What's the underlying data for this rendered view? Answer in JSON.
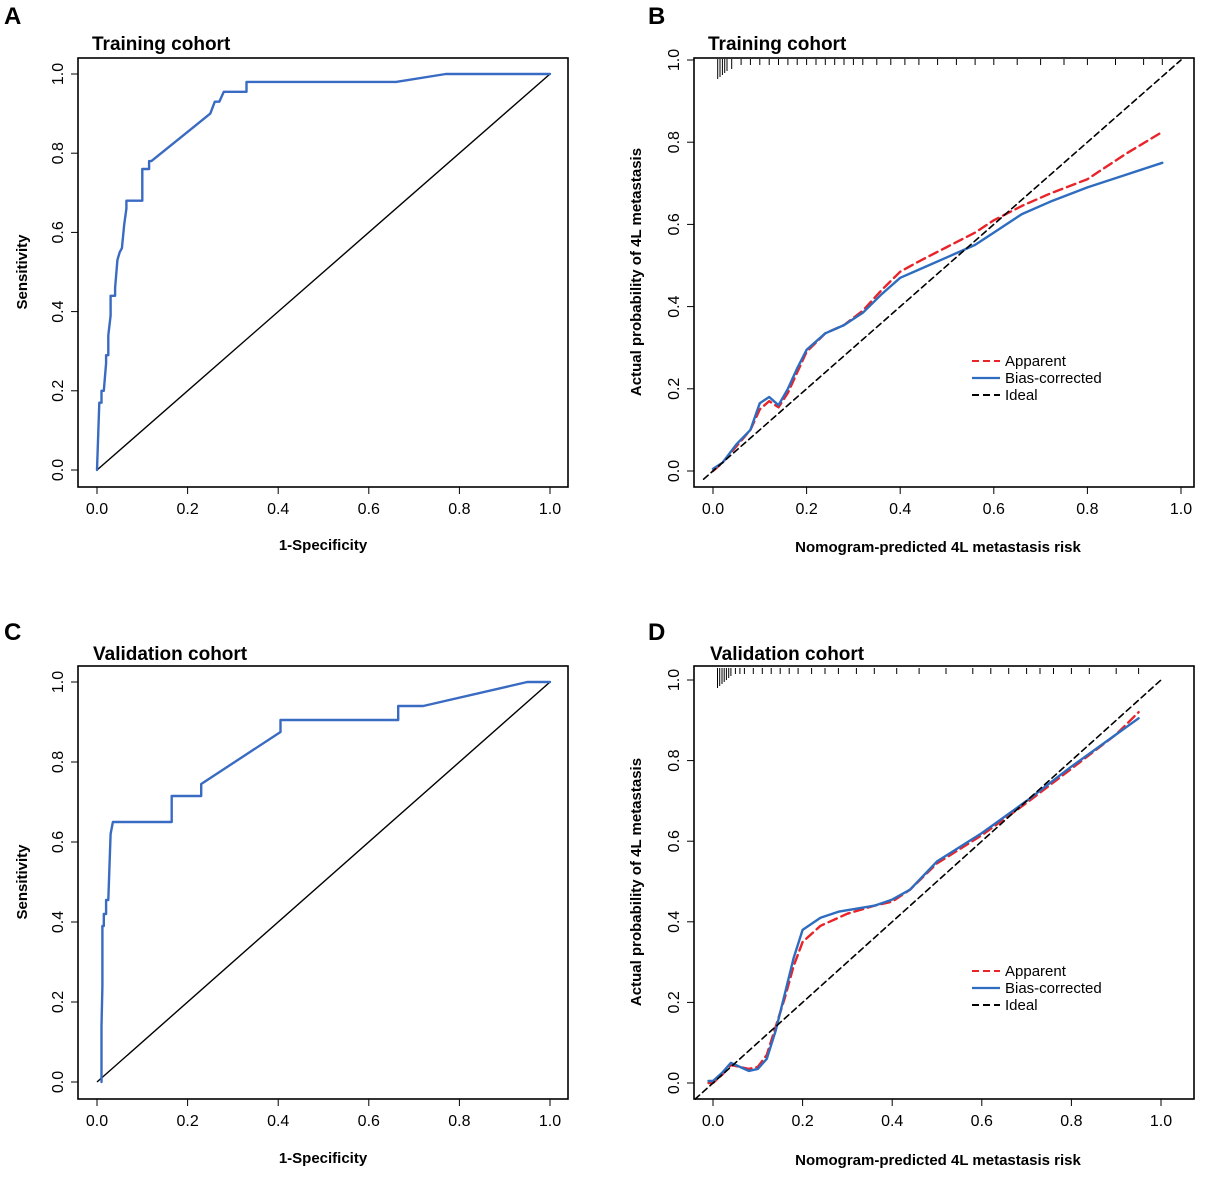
{
  "figure": {
    "panels": [
      {
        "id": "A",
        "label": "A"
      },
      {
        "id": "B",
        "label": "B"
      },
      {
        "id": "C",
        "label": "C"
      },
      {
        "id": "D",
        "label": "D"
      }
    ]
  },
  "colors": {
    "roc_curve": "#3a6bc2",
    "apparent": "#e8242a",
    "bias_corrected": "#2e6cc0",
    "ideal": "#000000",
    "reference_line": "#000000"
  },
  "chart_data": [
    {
      "panel": "A",
      "type": "line",
      "title": "Training cohort",
      "xlabel": "1-Specificity",
      "ylabel": "Sensitivity",
      "xlim": [
        0,
        1
      ],
      "ylim": [
        0,
        1
      ],
      "xticks": [
        "0.0",
        "0.2",
        "0.4",
        "0.6",
        "0.8",
        "1.0"
      ],
      "yticks": [
        "0.0",
        "0.2",
        "0.4",
        "0.6",
        "0.8",
        "1.0"
      ],
      "grid": false,
      "reference_line": [
        [
          0,
          0
        ],
        [
          1,
          1
        ]
      ],
      "series": [
        {
          "name": "ROC",
          "color": "#3a6bc2",
          "points": [
            [
              0.0,
              0.0
            ],
            [
              0.005,
              0.17
            ],
            [
              0.01,
              0.17
            ],
            [
              0.01,
              0.2
            ],
            [
              0.015,
              0.2
            ],
            [
              0.02,
              0.27
            ],
            [
              0.02,
              0.29
            ],
            [
              0.025,
              0.29
            ],
            [
              0.025,
              0.34
            ],
            [
              0.03,
              0.39
            ],
            [
              0.03,
              0.44
            ],
            [
              0.04,
              0.44
            ],
            [
              0.04,
              0.46
            ],
            [
              0.045,
              0.53
            ],
            [
              0.05,
              0.55
            ],
            [
              0.055,
              0.56
            ],
            [
              0.06,
              0.62
            ],
            [
              0.065,
              0.66
            ],
            [
              0.065,
              0.68
            ],
            [
              0.07,
              0.68
            ],
            [
              0.1,
              0.68
            ],
            [
              0.1,
              0.76
            ],
            [
              0.115,
              0.76
            ],
            [
              0.115,
              0.78
            ],
            [
              0.12,
              0.78
            ],
            [
              0.25,
              0.9
            ],
            [
              0.26,
              0.93
            ],
            [
              0.27,
              0.93
            ],
            [
              0.28,
              0.955
            ],
            [
              0.33,
              0.955
            ],
            [
              0.33,
              0.98
            ],
            [
              0.66,
              0.98
            ],
            [
              0.77,
              1.0
            ],
            [
              1.0,
              1.0
            ]
          ]
        }
      ]
    },
    {
      "panel": "B",
      "type": "line",
      "title": "Training cohort",
      "xlabel": "Nomogram-predicted 4L metastasis risk",
      "ylabel": "Actual probability of 4L metastasis",
      "xlim": [
        0,
        1
      ],
      "ylim": [
        0,
        1
      ],
      "xticks": [
        "0.0",
        "0.2",
        "0.4",
        "0.6",
        "0.8",
        "1.0"
      ],
      "yticks": [
        "0.0",
        "0.2",
        "0.4",
        "0.6",
        "0.8",
        "1.0"
      ],
      "grid": false,
      "legend_position": "bottom-right",
      "rug_x": [
        0.01,
        0.015,
        0.02,
        0.025,
        0.03,
        0.04,
        0.06,
        0.08,
        0.1,
        0.12,
        0.14,
        0.16,
        0.18,
        0.2,
        0.22,
        0.24,
        0.26,
        0.28,
        0.3,
        0.32,
        0.35,
        0.38,
        0.41,
        0.44,
        0.48,
        0.52,
        0.56,
        0.6,
        0.65,
        0.7,
        0.75,
        0.8,
        0.86,
        0.92,
        0.96
      ],
      "series": [
        {
          "name": "Apparent",
          "style": "dashed",
          "color": "#e8242a",
          "points": [
            [
              0.0,
              0.0
            ],
            [
              0.02,
              0.02
            ],
            [
              0.05,
              0.06
            ],
            [
              0.08,
              0.1
            ],
            [
              0.1,
              0.15
            ],
            [
              0.12,
              0.17
            ],
            [
              0.14,
              0.155
            ],
            [
              0.16,
              0.19
            ],
            [
              0.18,
              0.24
            ],
            [
              0.2,
              0.29
            ],
            [
              0.24,
              0.335
            ],
            [
              0.28,
              0.355
            ],
            [
              0.32,
              0.39
            ],
            [
              0.36,
              0.44
            ],
            [
              0.4,
              0.485
            ],
            [
              0.44,
              0.51
            ],
            [
              0.5,
              0.545
            ],
            [
              0.56,
              0.58
            ],
            [
              0.6,
              0.61
            ],
            [
              0.66,
              0.645
            ],
            [
              0.72,
              0.675
            ],
            [
              0.8,
              0.71
            ],
            [
              0.88,
              0.77
            ],
            [
              0.96,
              0.825
            ]
          ]
        },
        {
          "name": "Bias-corrected",
          "style": "solid",
          "color": "#2e6cc0",
          "points": [
            [
              0.0,
              0.005
            ],
            [
              0.02,
              0.02
            ],
            [
              0.05,
              0.065
            ],
            [
              0.08,
              0.1
            ],
            [
              0.1,
              0.165
            ],
            [
              0.12,
              0.18
            ],
            [
              0.14,
              0.16
            ],
            [
              0.16,
              0.2
            ],
            [
              0.18,
              0.25
            ],
            [
              0.2,
              0.295
            ],
            [
              0.24,
              0.335
            ],
            [
              0.28,
              0.355
            ],
            [
              0.32,
              0.385
            ],
            [
              0.36,
              0.43
            ],
            [
              0.4,
              0.47
            ],
            [
              0.44,
              0.49
            ],
            [
              0.5,
              0.52
            ],
            [
              0.56,
              0.55
            ],
            [
              0.6,
              0.58
            ],
            [
              0.66,
              0.625
            ],
            [
              0.72,
              0.655
            ],
            [
              0.8,
              0.69
            ],
            [
              0.88,
              0.72
            ],
            [
              0.96,
              0.75
            ]
          ]
        },
        {
          "name": "Ideal",
          "style": "dashed",
          "color": "#000000",
          "points": [
            [
              -0.02,
              -0.02
            ],
            [
              1.0,
              1.0
            ]
          ]
        }
      ]
    },
    {
      "panel": "C",
      "type": "line",
      "title": "Validation cohort",
      "xlabel": "1-Specificity",
      "ylabel": "Sensitivity",
      "xlim": [
        0,
        1
      ],
      "ylim": [
        0,
        1
      ],
      "xticks": [
        "0.0",
        "0.2",
        "0.4",
        "0.6",
        "0.8",
        "1.0"
      ],
      "yticks": [
        "0.0",
        "0.2",
        "0.4",
        "0.6",
        "0.8",
        "1.0"
      ],
      "grid": false,
      "reference_line": [
        [
          0,
          0
        ],
        [
          1,
          1
        ]
      ],
      "series": [
        {
          "name": "ROC",
          "color": "#3a6bc2",
          "points": [
            [
              0.01,
              0.0
            ],
            [
              0.01,
              0.14
            ],
            [
              0.012,
              0.24
            ],
            [
              0.012,
              0.39
            ],
            [
              0.015,
              0.39
            ],
            [
              0.015,
              0.42
            ],
            [
              0.02,
              0.42
            ],
            [
              0.02,
              0.455
            ],
            [
              0.025,
              0.455
            ],
            [
              0.03,
              0.62
            ],
            [
              0.035,
              0.65
            ],
            [
              0.165,
              0.65
            ],
            [
              0.165,
              0.715
            ],
            [
              0.23,
              0.715
            ],
            [
              0.23,
              0.745
            ],
            [
              0.405,
              0.875
            ],
            [
              0.405,
              0.905
            ],
            [
              0.665,
              0.905
            ],
            [
              0.665,
              0.94
            ],
            [
              0.72,
              0.94
            ],
            [
              0.95,
              1.0
            ],
            [
              1.0,
              1.0
            ]
          ]
        }
      ]
    },
    {
      "panel": "D",
      "type": "line",
      "title": "Validation cohort",
      "xlabel": "Nomogram-predicted 4L metastasis risk",
      "ylabel": "Actual probability of 4L metastasis",
      "xlim": [
        0,
        1
      ],
      "ylim": [
        0,
        1
      ],
      "xticks": [
        "0.0",
        "0.2",
        "0.4",
        "0.6",
        "0.8",
        "1.0"
      ],
      "yticks": [
        "0.0",
        "0.2",
        "0.4",
        "0.6",
        "0.8",
        "1.0"
      ],
      "grid": false,
      "legend_position": "bottom-right",
      "rug_x": [
        0.01,
        0.015,
        0.02,
        0.025,
        0.03,
        0.035,
        0.04,
        0.05,
        0.06,
        0.07,
        0.09,
        0.11,
        0.13,
        0.15,
        0.17,
        0.19,
        0.22,
        0.25,
        0.28,
        0.32,
        0.36,
        0.41,
        0.46,
        0.52,
        0.58,
        0.62,
        0.66,
        0.7,
        0.73,
        0.76,
        0.8,
        0.84,
        0.9,
        0.95
      ],
      "series": [
        {
          "name": "Apparent",
          "style": "dashed",
          "color": "#e8242a",
          "points": [
            [
              -0.01,
              0.0
            ],
            [
              0.0,
              0.0
            ],
            [
              0.02,
              0.02
            ],
            [
              0.04,
              0.045
            ],
            [
              0.06,
              0.04
            ],
            [
              0.08,
              0.035
            ],
            [
              0.1,
              0.04
            ],
            [
              0.12,
              0.07
            ],
            [
              0.14,
              0.14
            ],
            [
              0.16,
              0.21
            ],
            [
              0.18,
              0.29
            ],
            [
              0.2,
              0.35
            ],
            [
              0.24,
              0.39
            ],
            [
              0.3,
              0.42
            ],
            [
              0.36,
              0.44
            ],
            [
              0.4,
              0.45
            ],
            [
              0.44,
              0.48
            ],
            [
              0.5,
              0.545
            ],
            [
              0.6,
              0.615
            ],
            [
              0.7,
              0.695
            ],
            [
              0.8,
              0.78
            ],
            [
              0.9,
              0.865
            ],
            [
              0.95,
              0.92
            ]
          ]
        },
        {
          "name": "Bias-corrected",
          "style": "solid",
          "color": "#2e6cc0",
          "points": [
            [
              -0.01,
              0.005
            ],
            [
              0.0,
              0.005
            ],
            [
              0.02,
              0.025
            ],
            [
              0.04,
              0.05
            ],
            [
              0.06,
              0.04
            ],
            [
              0.08,
              0.03
            ],
            [
              0.1,
              0.035
            ],
            [
              0.12,
              0.06
            ],
            [
              0.14,
              0.13
            ],
            [
              0.16,
              0.22
            ],
            [
              0.18,
              0.31
            ],
            [
              0.2,
              0.38
            ],
            [
              0.24,
              0.41
            ],
            [
              0.28,
              0.425
            ],
            [
              0.36,
              0.44
            ],
            [
              0.4,
              0.455
            ],
            [
              0.44,
              0.48
            ],
            [
              0.5,
              0.55
            ],
            [
              0.6,
              0.62
            ],
            [
              0.7,
              0.7
            ],
            [
              0.8,
              0.785
            ],
            [
              0.9,
              0.865
            ],
            [
              0.95,
              0.905
            ]
          ]
        },
        {
          "name": "Ideal",
          "style": "dashed",
          "color": "#000000",
          "points": [
            [
              -0.04,
              -0.04
            ],
            [
              1.0,
              1.0
            ]
          ]
        }
      ]
    }
  ]
}
